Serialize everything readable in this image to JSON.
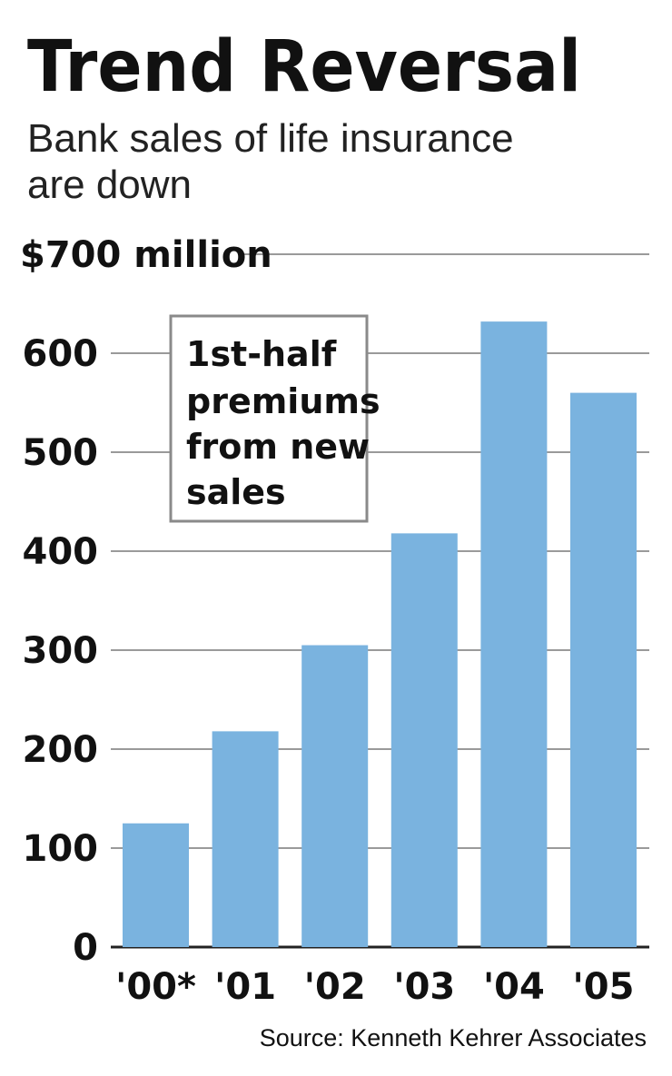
{
  "chart_data": {
    "type": "bar",
    "title": "Trend Reversal",
    "subtitle": "Bank sales of life insurance are down",
    "subtitle_lines": [
      "Bank sales of life insurance",
      "are down"
    ],
    "ylabel": "",
    "ylim": [
      0,
      700
    ],
    "yticks": [
      0,
      100,
      200,
      300,
      400,
      500,
      600,
      700
    ],
    "ytick_labels": [
      "0",
      "100",
      "200",
      "300",
      "400",
      "500",
      "600",
      "$700 million"
    ],
    "categories": [
      "'00*",
      "'01",
      "'02",
      "'03",
      "'04",
      "'05"
    ],
    "values": [
      125,
      218,
      305,
      418,
      632,
      560
    ],
    "legend_lines": [
      "1st-half",
      "premiums",
      "from new",
      "sales"
    ],
    "legend_placement": "top-left",
    "grid": true,
    "source": "Source: Kenneth Kehrer Associates",
    "colors": {
      "bar": "#7ab3df",
      "grid": "#9a9a9a",
      "axis": "#222222"
    }
  }
}
